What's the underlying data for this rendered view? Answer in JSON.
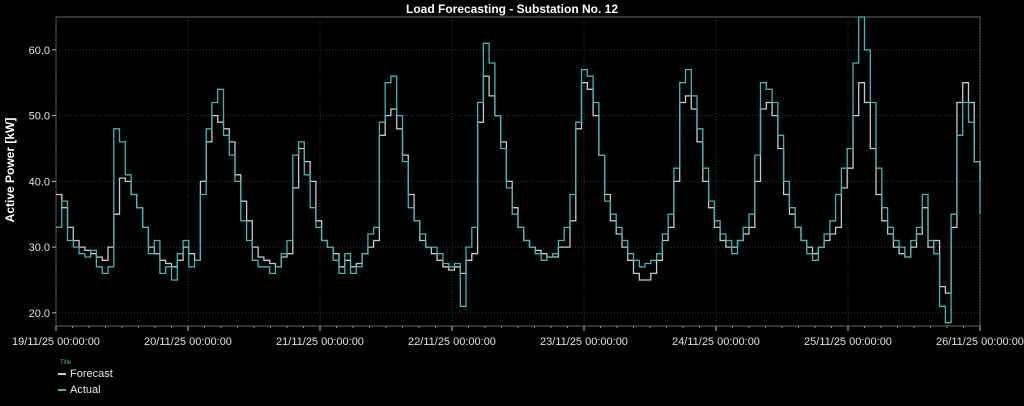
{
  "colors": {
    "background": "#000000",
    "forecast": "#c8c8c8",
    "actual": "#3fb6b6",
    "grid": "#3a3a3a",
    "axis": "#bdbdbd"
  },
  "chart_data": {
    "type": "line",
    "title": "Load Forecasting - Substation No. 12",
    "ylabel": "Active Power [kW]",
    "xlabel": "",
    "ylim": [
      18,
      65
    ],
    "yticks": [
      "20.0",
      "30.0",
      "40.0",
      "50.0",
      "60.0"
    ],
    "xlim": [
      "19/11/25 00:00:00",
      "26/11/25 00:00:00"
    ],
    "xticks": [
      "19/11/25 00:00:00",
      "20/11/25 00:00:00",
      "21/11/25 00:00:00",
      "22/11/25 00:00:00",
      "23/11/25 00:00:00",
      "24/11/25 00:00:00",
      "25/11/25 00:00:00",
      "26/11/25 00:00:00"
    ],
    "grid": true,
    "legend_title": "Title",
    "legend_position": "bottom-left",
    "x_step": "1h",
    "series": [
      {
        "name": "Forecast",
        "color": "#c8c8c8",
        "values": [
          38.0,
          36.0,
          33.0,
          31.0,
          30.0,
          29.5,
          29.0,
          28.5,
          28.0,
          30.0,
          35.0,
          40.5,
          40.0,
          38.0,
          36.0,
          33.0,
          30.0,
          29.0,
          28.0,
          27.5,
          27.0,
          28.0,
          30.0,
          29.0,
          28.0,
          40.0,
          46.0,
          50.0,
          49.0,
          48.0,
          46.0,
          41.0,
          37.0,
          34.0,
          30.0,
          28.5,
          28.0,
          27.5,
          27.0,
          28.5,
          29.0,
          39.0,
          45.0,
          43.0,
          40.0,
          34.0,
          31.0,
          30.0,
          29.0,
          27.0,
          28.0,
          27.0,
          27.5,
          29.0,
          30.0,
          31.0,
          47.0,
          50.0,
          51.0,
          48.0,
          44.0,
          38.0,
          34.0,
          31.0,
          30.0,
          29.0,
          28.0,
          27.0,
          26.5,
          27.0,
          26.0,
          28.0,
          29.0,
          49.0,
          56.0,
          53.0,
          50.0,
          46.0,
          40.0,
          36.0,
          33.0,
          31.0,
          30.0,
          29.5,
          29.0,
          28.5,
          28.5,
          30.0,
          30.0,
          34.0,
          48.0,
          55.0,
          54.0,
          50.0,
          44.0,
          38.0,
          34.0,
          32.0,
          30.0,
          28.0,
          26.0,
          25.0,
          25.0,
          26.0,
          28.0,
          31.0,
          33.0,
          40.0,
          52.0,
          53.0,
          51.0,
          46.0,
          40.0,
          36.0,
          33.0,
          31.0,
          30.0,
          30.0,
          31.0,
          32.0,
          33.0,
          40.0,
          51.0,
          52.0,
          50.0,
          45.0,
          38.0,
          35.0,
          33.0,
          31.0,
          30.0,
          29.0,
          30.0,
          31.0,
          32.0,
          33.0,
          39.0,
          42.0,
          50.0,
          55.0,
          52.0,
          45.0,
          38.0,
          34.0,
          32.0,
          30.0,
          29.0,
          28.5,
          30.0,
          32.0,
          36.0,
          30.0,
          31.0,
          24.0,
          23.0,
          33.0,
          52.0,
          55.0,
          52.0,
          43.0,
          40.0
        ]
      },
      {
        "name": "Actual",
        "color": "#3fb6b6",
        "values": [
          33.0,
          37.0,
          31.0,
          30.0,
          29.0,
          28.5,
          29.5,
          27.0,
          26.0,
          27.0,
          48.0,
          46.0,
          41.0,
          38.0,
          36.0,
          33.0,
          29.0,
          31.0,
          26.0,
          27.0,
          25.0,
          29.0,
          31.0,
          27.0,
          28.0,
          38.0,
          48.0,
          52.0,
          54.0,
          47.0,
          44.0,
          40.0,
          34.0,
          31.0,
          28.0,
          27.0,
          27.0,
          26.0,
          27.0,
          29.0,
          31.0,
          44.0,
          46.0,
          41.0,
          36.0,
          33.0,
          31.0,
          30.0,
          28.0,
          26.0,
          29.0,
          26.0,
          27.0,
          29.0,
          32.0,
          33.0,
          49.0,
          55.0,
          56.0,
          50.0,
          43.0,
          36.0,
          34.0,
          32.0,
          30.0,
          30.0,
          29.0,
          27.5,
          27.0,
          27.5,
          21.0,
          30.0,
          33.0,
          52.0,
          61.0,
          58.0,
          50.0,
          45.0,
          39.0,
          35.0,
          33.0,
          31.0,
          30.0,
          29.0,
          28.0,
          28.5,
          29.0,
          31.0,
          33.0,
          38.0,
          49.0,
          57.0,
          56.0,
          52.0,
          44.0,
          37.0,
          35.0,
          33.0,
          31.0,
          29.0,
          28.0,
          27.0,
          27.5,
          28.0,
          29.0,
          32.0,
          35.0,
          42.0,
          55.0,
          57.0,
          53.0,
          48.0,
          42.0,
          37.0,
          34.0,
          32.0,
          31.0,
          29.0,
          31.0,
          33.0,
          35.0,
          44.0,
          55.0,
          54.0,
          52.0,
          47.0,
          40.0,
          36.0,
          33.0,
          31.0,
          29.0,
          28.0,
          30.0,
          32.0,
          34.0,
          38.0,
          42.0,
          45.0,
          58.0,
          65.0,
          60.0,
          52.0,
          42.0,
          36.0,
          33.0,
          31.0,
          30.0,
          28.5,
          31.0,
          33.0,
          38.0,
          31.0,
          29.0,
          21.0,
          18.5,
          35.0,
          47.0,
          52.0,
          49.0,
          43.0,
          35.0
        ]
      }
    ]
  }
}
